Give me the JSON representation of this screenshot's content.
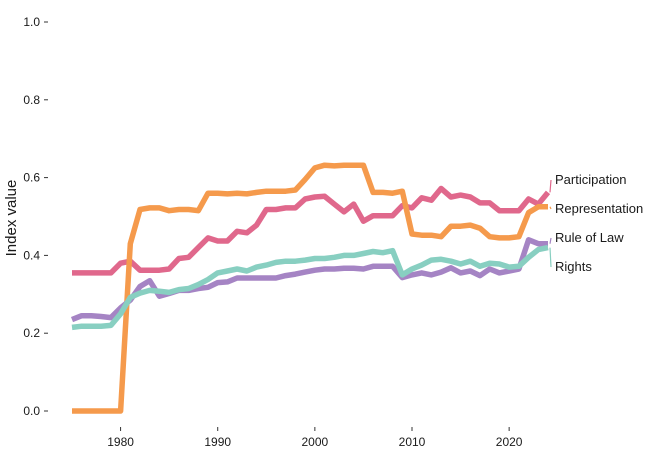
{
  "chart_data": {
    "type": "line",
    "title": "",
    "xlabel": "",
    "ylabel": "Index value",
    "xlim": [
      1975,
      2024
    ],
    "ylim": [
      0,
      1
    ],
    "x_ticks": [
      1980,
      1990,
      2000,
      2010,
      2020
    ],
    "y_ticks": [
      "0.0",
      "0.2",
      "0.4",
      "0.6",
      "0.8",
      "1.0"
    ],
    "grid": false,
    "legend": "direct labels at line ends (right)",
    "x": [
      1975,
      1976,
      1977,
      1978,
      1979,
      1980,
      1981,
      1982,
      1983,
      1984,
      1985,
      1986,
      1987,
      1988,
      1989,
      1990,
      1991,
      1992,
      1993,
      1994,
      1995,
      1996,
      1997,
      1998,
      1999,
      2000,
      2001,
      2002,
      2003,
      2004,
      2005,
      2006,
      2007,
      2008,
      2009,
      2010,
      2011,
      2012,
      2013,
      2014,
      2015,
      2016,
      2017,
      2018,
      2019,
      2020,
      2021,
      2022,
      2023,
      2024
    ],
    "series": [
      {
        "name": "Participation",
        "color": "#E0688C",
        "values": [
          0.355,
          0.355,
          0.355,
          0.355,
          0.355,
          0.38,
          0.385,
          0.362,
          0.362,
          0.362,
          0.365,
          0.392,
          0.395,
          0.42,
          0.445,
          0.437,
          0.437,
          0.462,
          0.458,
          0.478,
          0.518,
          0.518,
          0.522,
          0.522,
          0.545,
          0.55,
          0.552,
          0.532,
          0.512,
          0.532,
          0.488,
          0.502,
          0.502,
          0.502,
          0.528,
          0.522,
          0.548,
          0.542,
          0.572,
          0.55,
          0.555,
          0.55,
          0.535,
          0.535,
          0.515,
          0.515,
          0.515,
          0.545,
          0.532,
          0.562
        ]
      },
      {
        "name": "Representation",
        "color": "#F59A4C",
        "values": [
          0.0,
          0.0,
          0.0,
          0.0,
          0.0,
          0.0,
          0.43,
          0.518,
          0.522,
          0.522,
          0.515,
          0.518,
          0.518,
          0.515,
          0.56,
          0.56,
          0.558,
          0.56,
          0.558,
          0.562,
          0.565,
          0.565,
          0.565,
          0.568,
          0.595,
          0.625,
          0.632,
          0.63,
          0.632,
          0.632,
          0.632,
          0.562,
          0.562,
          0.56,
          0.565,
          0.455,
          0.452,
          0.452,
          0.448,
          0.475,
          0.475,
          0.478,
          0.47,
          0.448,
          0.445,
          0.445,
          0.448,
          0.51,
          0.525,
          0.525
        ]
      },
      {
        "name": "Rule of Law",
        "color": "#A584C4",
        "values": [
          0.235,
          0.245,
          0.245,
          0.243,
          0.24,
          0.265,
          0.285,
          0.32,
          0.335,
          0.295,
          0.302,
          0.31,
          0.31,
          0.315,
          0.318,
          0.33,
          0.332,
          0.342,
          0.342,
          0.342,
          0.342,
          0.342,
          0.348,
          0.352,
          0.357,
          0.362,
          0.365,
          0.365,
          0.367,
          0.367,
          0.365,
          0.372,
          0.372,
          0.372,
          0.343,
          0.35,
          0.355,
          0.35,
          0.357,
          0.368,
          0.355,
          0.36,
          0.348,
          0.365,
          0.355,
          0.36,
          0.365,
          0.44,
          0.43,
          0.43
        ]
      },
      {
        "name": "Rights",
        "color": "#88CFC1",
        "values": [
          0.215,
          0.218,
          0.218,
          0.218,
          0.22,
          0.25,
          0.292,
          0.303,
          0.31,
          0.308,
          0.305,
          0.312,
          0.315,
          0.325,
          0.338,
          0.355,
          0.36,
          0.365,
          0.36,
          0.37,
          0.375,
          0.382,
          0.385,
          0.385,
          0.388,
          0.392,
          0.392,
          0.395,
          0.4,
          0.4,
          0.405,
          0.41,
          0.407,
          0.412,
          0.35,
          0.365,
          0.375,
          0.388,
          0.39,
          0.385,
          0.378,
          0.385,
          0.372,
          0.38,
          0.378,
          0.37,
          0.372,
          0.395,
          0.415,
          0.42
        ]
      }
    ]
  }
}
